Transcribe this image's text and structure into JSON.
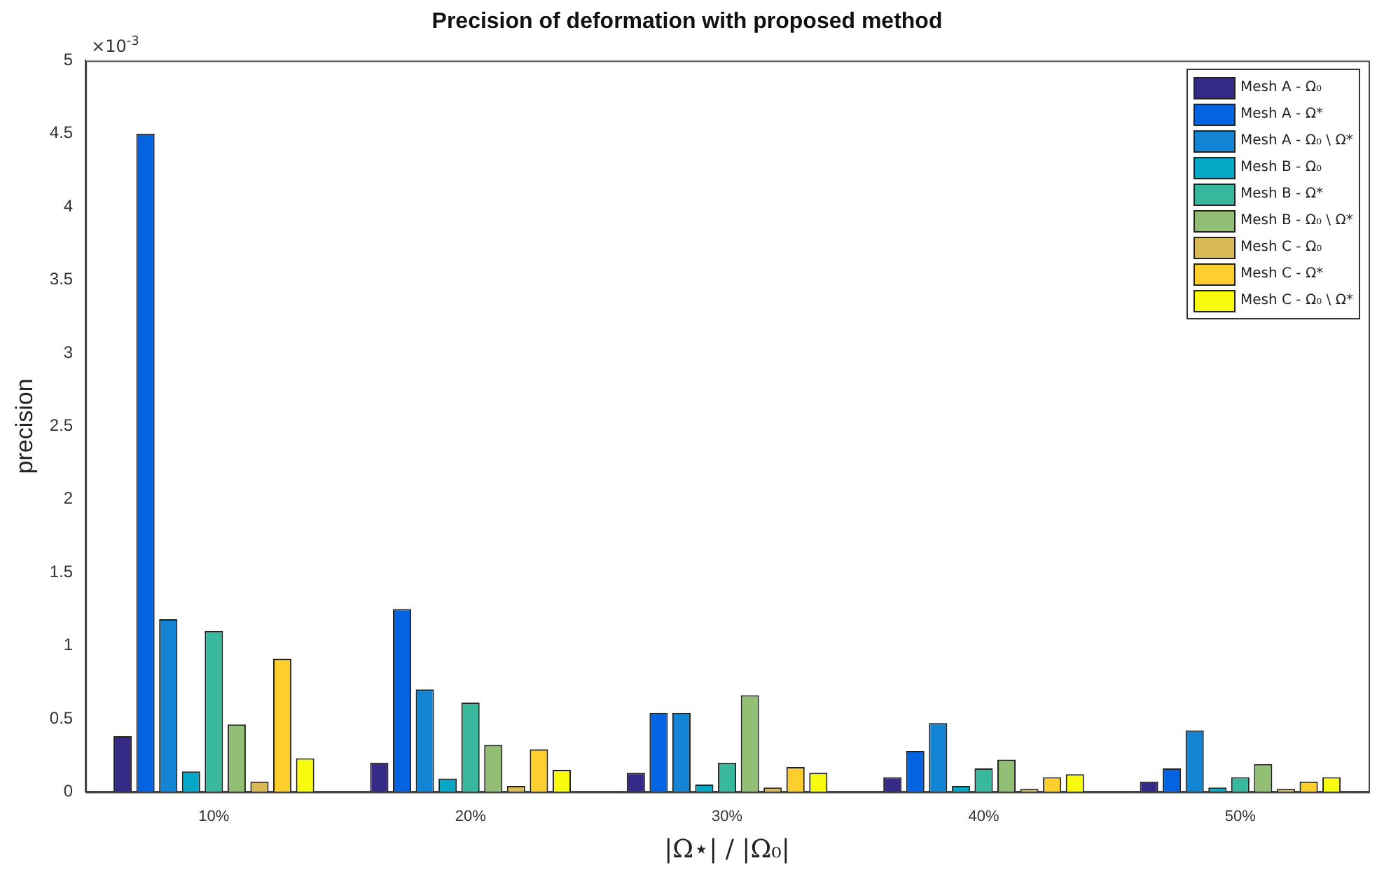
{
  "chart_data": {
    "type": "bar",
    "title": "Precision of deformation with proposed method",
    "xlabel": "|Ω⋆| / |Ω₀|",
    "ylabel": "precision",
    "annotations": [
      "×10$^{-3}$"
    ],
    "categories": [
      "10%",
      "20%",
      "30%",
      "40%",
      "50%"
    ],
    "series": [
      {
        "name": "Mesh A - Ω₀",
        "color": "#352a87",
        "values": [
          0.38,
          0.2,
          0.13,
          0.1,
          0.07
        ]
      },
      {
        "name": "Mesh A - Ω*",
        "color": "#0363e1",
        "values": [
          4.5,
          1.25,
          0.54,
          0.28,
          0.16
        ]
      },
      {
        "name": "Mesh A - Ω₀ \\ Ω*",
        "color": "#1485d4",
        "values": [
          1.18,
          0.7,
          0.54,
          0.47,
          0.42
        ]
      },
      {
        "name": "Mesh B - Ω₀",
        "color": "#06a7c6",
        "values": [
          0.14,
          0.09,
          0.05,
          0.04,
          0.03
        ]
      },
      {
        "name": "Mesh B - Ω*",
        "color": "#38b99e",
        "values": [
          1.1,
          0.61,
          0.2,
          0.16,
          0.1
        ]
      },
      {
        "name": "Mesh B - Ω₀ \\ Ω*",
        "color": "#92bf73",
        "values": [
          0.46,
          0.32,
          0.66,
          0.22,
          0.19
        ]
      },
      {
        "name": "Mesh C - Ω₀",
        "color": "#d9ba56",
        "values": [
          0.07,
          0.04,
          0.03,
          0.02,
          0.02
        ]
      },
      {
        "name": "Mesh C - Ω*",
        "color": "#fcce2e",
        "values": [
          0.91,
          0.29,
          0.17,
          0.1,
          0.07
        ]
      },
      {
        "name": "Mesh C - Ω₀ \\ Ω*",
        "color": "#f9fb0e",
        "values": [
          0.23,
          0.15,
          0.13,
          0.12,
          0.1
        ]
      }
    ],
    "ylim": [
      0,
      5
    ],
    "yticks": [
      0,
      0.5,
      1,
      1.5,
      2,
      2.5,
      3,
      3.5,
      4,
      4.5,
      5
    ],
    "grid": false,
    "legend": "top right"
  }
}
